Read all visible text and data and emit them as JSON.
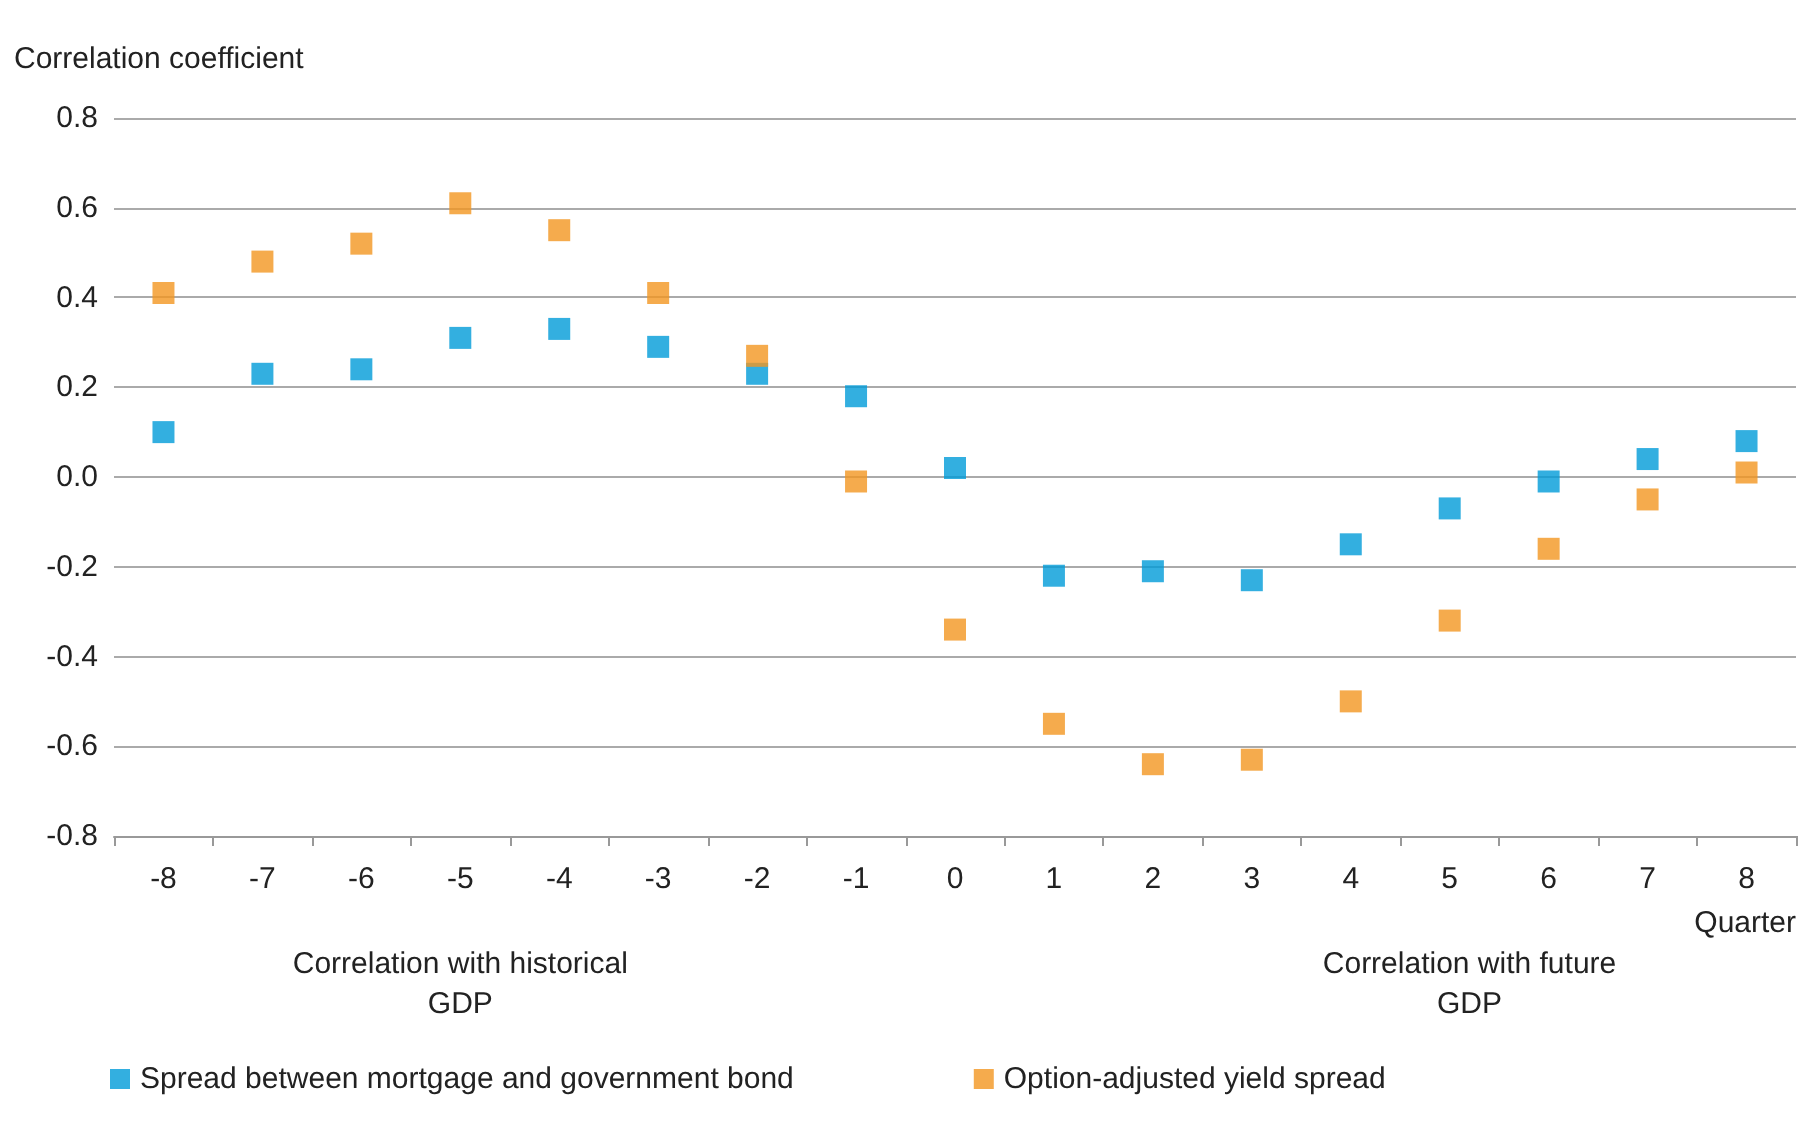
{
  "chart_data": {
    "type": "scatter",
    "ylabel": "Correlation coefficient",
    "xlabel": "Quarter",
    "categories": [
      "-8",
      "-7",
      "-6",
      "-5",
      "-4",
      "-3",
      "-2",
      "-1",
      "0",
      "1",
      "2",
      "3",
      "4",
      "5",
      "6",
      "7",
      "8"
    ],
    "series": [
      {
        "name": "Spread between mortgage and government bond",
        "color": "#009bd8",
        "values": [
          0.1,
          0.23,
          0.24,
          0.31,
          0.33,
          0.29,
          0.23,
          0.18,
          0.02,
          -0.22,
          -0.21,
          -0.23,
          -0.15,
          -0.07,
          -0.01,
          0.04,
          0.08
        ]
      },
      {
        "name": "Option-adjusted yield spread",
        "color": "#f39621",
        "values": [
          0.41,
          0.48,
          0.52,
          0.61,
          0.55,
          0.41,
          0.27,
          -0.01,
          -0.34,
          -0.55,
          -0.64,
          -0.63,
          -0.5,
          -0.32,
          -0.16,
          -0.05,
          0.01
        ]
      }
    ],
    "ylim": [
      -0.8,
      0.8
    ],
    "yticks": [
      -0.8,
      -0.6,
      -0.4,
      -0.2,
      {
        "value": 0,
        "label": "0.0"
      },
      0.2,
      0.4,
      0.6,
      0.8
    ],
    "annotations": [
      "Correlation with historical\nGDP",
      "Correlation with future\nGDP"
    ],
    "grid": "y",
    "legend": "bottom",
    "marker": "square"
  }
}
